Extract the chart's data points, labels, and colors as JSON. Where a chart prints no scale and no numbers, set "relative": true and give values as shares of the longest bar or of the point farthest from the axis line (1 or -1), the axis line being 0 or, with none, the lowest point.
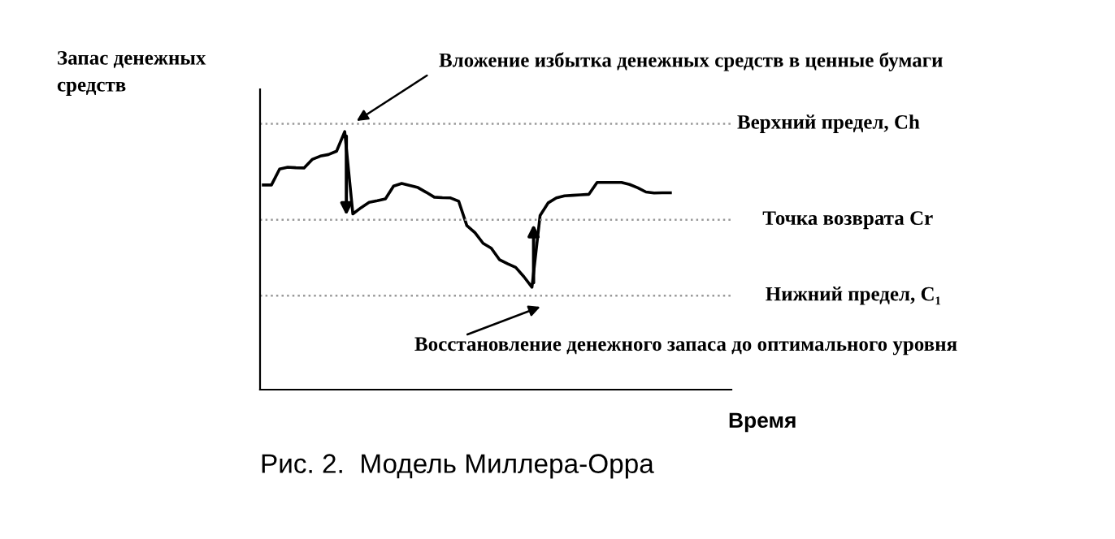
{
  "chart_data": {
    "type": "line",
    "xlabel": "Время",
    "ylabel": "Запас денежных\nсредств",
    "categories": [
      null,
      null,
      null,
      null,
      null,
      null,
      null,
      null,
      null,
      null,
      null,
      null,
      null,
      null,
      null,
      null,
      null,
      null,
      null,
      null,
      null,
      null,
      null,
      null,
      null,
      null,
      null,
      null,
      null,
      null,
      null,
      null,
      null,
      null,
      null,
      null,
      null,
      null,
      null,
      null,
      null,
      null,
      null,
      null,
      null,
      null,
      null,
      null,
      null,
      null,
      null
    ],
    "series": [
      {
        "color": "#000000",
        "values": [
          0.793,
          0.793,
          0.855,
          0.862,
          0.86,
          0.859,
          0.892,
          0.905,
          0.911,
          0.924,
          1.0,
          0.681,
          0.705,
          0.726,
          0.732,
          0.739,
          0.789,
          0.799,
          0.791,
          0.783,
          0.765,
          0.746,
          0.744,
          0.743,
          0.73,
          0.636,
          0.608,
          0.567,
          0.548,
          0.504,
          0.488,
          0.474,
          0.438,
          0.397,
          0.675,
          0.724,
          0.743,
          0.751,
          0.753,
          0.755,
          0.757,
          0.803,
          0.803,
          0.803,
          0.803,
          0.795,
          0.782,
          0.766,
          0.762,
          0.763,
          0.763
        ]
      }
    ],
    "ref_lines": [
      {
        "axis": "y",
        "value": 1.03,
        "label": "Верхний предел, Ch",
        "color": "#999999",
        "line_style": "dotted"
      },
      {
        "axis": "y",
        "value": 0.658,
        "label": "Точка возврата Cr",
        "color": "#999999",
        "line_style": "dotted"
      },
      {
        "axis": "y",
        "value": 0.364,
        "label": "Нижний предел, C₁",
        "color": "#999999",
        "line_style": "dotted"
      }
    ],
    "annotations": [
      "Вложение избытка денежных средств в ценные бумаги",
      "Восстановление денежного запаса до оптимального уровня",
      "Рис. 2.  Модель Миллера-Орра"
    ],
    "relative": true
  }
}
